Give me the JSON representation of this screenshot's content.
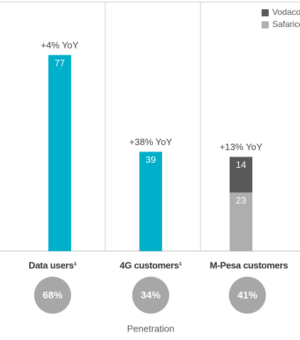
{
  "chart_data": {
    "type": "bar",
    "categories": [
      "Data users¹",
      "4G customers¹",
      "M-Pesa customers"
    ],
    "values": [
      77,
      39,
      null
    ],
    "color": "#00b0ca",
    "series": [
      {
        "name": "Vodacom",
        "color": "#58595b",
        "values": [
          null,
          null,
          14
        ]
      },
      {
        "name": "Safaricom",
        "color": "#aeaeae",
        "values": [
          null,
          null,
          23
        ]
      }
    ],
    "annotations": [
      "+4% YoY",
      "+38% YoY",
      "+13% YoY"
    ],
    "penetration": {
      "label": "Penetration",
      "values": [
        68,
        34,
        41
      ],
      "value_labels": [
        "68%",
        "34%",
        "41%"
      ],
      "color": "#a7a7a7"
    }
  }
}
